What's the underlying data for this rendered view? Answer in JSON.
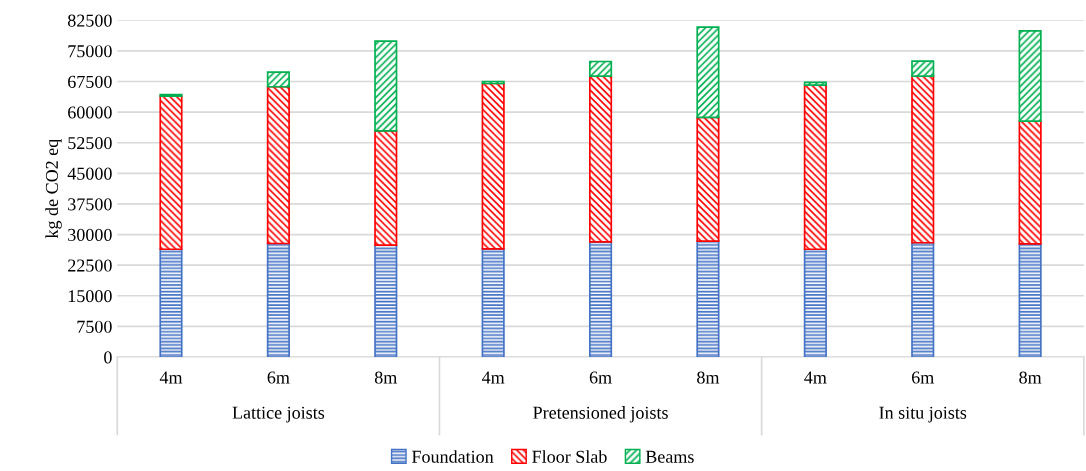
{
  "chart_data": {
    "type": "bar",
    "stacked": true,
    "ylabel": "kg de CO2 eq",
    "categories": [
      "4m",
      "6m",
      "8m",
      "4m",
      "6m",
      "8m",
      "4m",
      "6m",
      "8m"
    ],
    "series": [
      {
        "name": "Foundation",
        "color": "#4472c4",
        "values": [
          26400,
          27800,
          27400,
          26500,
          28200,
          28400,
          26400,
          28000,
          27700
        ]
      },
      {
        "name": "Floor Slab",
        "color": "#ff0000",
        "values": [
          37500,
          38400,
          28000,
          40500,
          40600,
          30300,
          40200,
          40800,
          30100
        ]
      },
      {
        "name": "Beams",
        "color": "#00b050",
        "values": [
          400,
          3600,
          22000,
          500,
          3600,
          22100,
          700,
          3700,
          22100
        ]
      }
    ],
    "annotations": [
      "Lattice joists",
      "Pretensioned joists",
      "In situ joists"
    ],
    "ylim": [
      0,
      82500
    ],
    "yticks": [
      0,
      7500,
      15000,
      22500,
      30000,
      37500,
      45000,
      52500,
      60000,
      67500,
      75000,
      82500
    ],
    "grid": "y",
    "legend": "bottom"
  }
}
